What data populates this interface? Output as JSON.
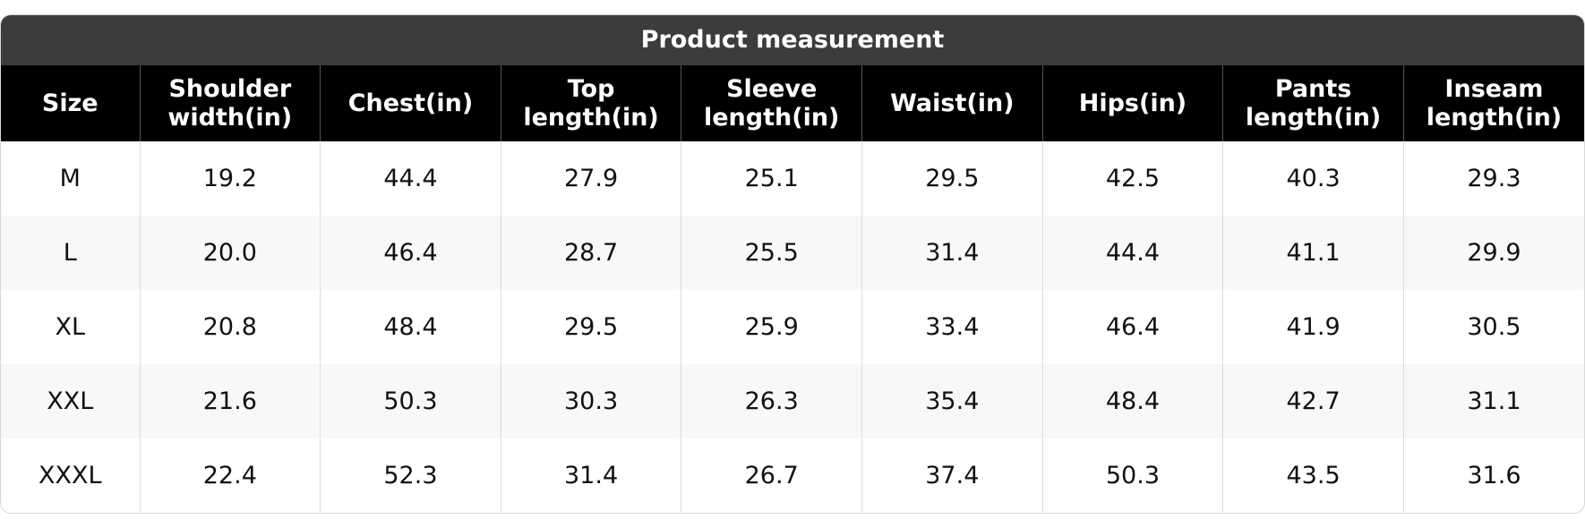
{
  "table": {
    "title": "Product measurement",
    "header": [
      "Size",
      "Shoulder width(in)",
      "Chest(in)",
      "Top length(in)",
      "Sleeve length(in)",
      "Waist(in)",
      "Hips(in)",
      "Pants length(in)",
      "Inseam length(in)"
    ],
    "rows": [
      [
        "M",
        "19.2",
        "44.4",
        "27.9",
        "25.1",
        "29.5",
        "42.5",
        "40.3",
        "29.3"
      ],
      [
        "L",
        "20.0",
        "46.4",
        "28.7",
        "25.5",
        "31.4",
        "44.4",
        "41.1",
        "29.9"
      ],
      [
        "XL",
        "20.8",
        "48.4",
        "29.5",
        "25.9",
        "33.4",
        "46.4",
        "41.9",
        "30.5"
      ],
      [
        "XXL",
        "21.6",
        "50.3",
        "30.3",
        "26.3",
        "35.4",
        "48.4",
        "42.7",
        "31.1"
      ],
      [
        "XXXL",
        "22.4",
        "52.3",
        "31.4",
        "26.7",
        "37.4",
        "50.3",
        "43.5",
        "31.6"
      ]
    ]
  }
}
